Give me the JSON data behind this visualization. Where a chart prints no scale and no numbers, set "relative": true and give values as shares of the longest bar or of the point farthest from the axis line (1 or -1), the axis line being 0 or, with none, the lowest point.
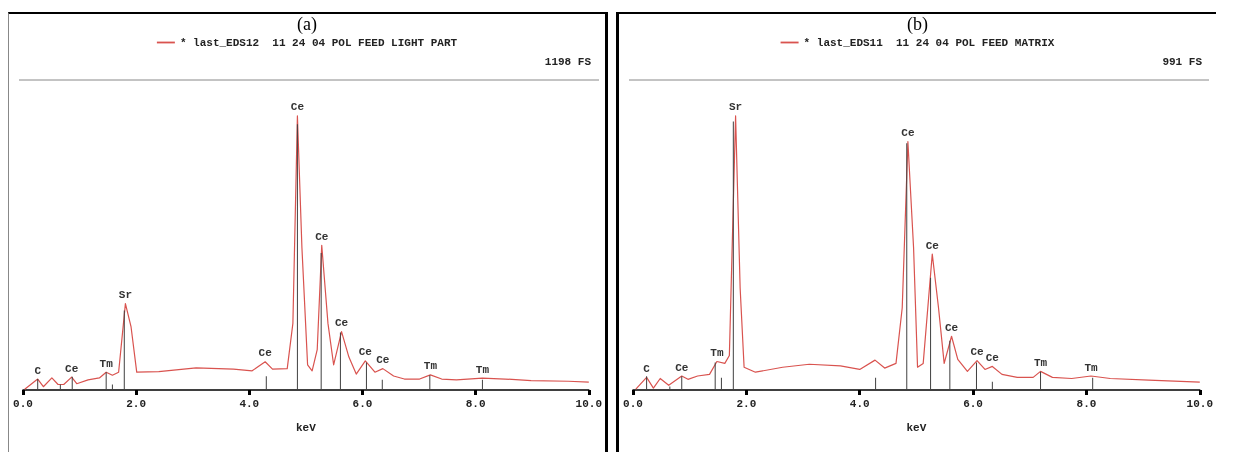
{
  "chart_data": [
    {
      "type": "line",
      "title": "(a)",
      "xlabel": "keV",
      "relative": true,
      "legend": "top",
      "marker": "none",
      "grid": false,
      "xlim": [
        0,
        10
      ],
      "xticks": [
        {
          "value": 0,
          "label": "0.0"
        },
        {
          "value": 2,
          "label": "2.0"
        },
        {
          "value": 4,
          "label": "4.0"
        },
        {
          "value": 6,
          "label": "6.0"
        },
        {
          "value": 8,
          "label": "8.0"
        },
        {
          "value": 10,
          "label": "10.0"
        }
      ],
      "series": [
        {
          "name": "* last_EDS12  11 24 04 POL FEED LIGHT PART",
          "color": "#d9534f",
          "x": [
            0.03,
            0.26,
            0.36,
            0.51,
            0.62,
            0.72,
            0.86,
            0.95,
            1.15,
            1.35,
            1.47,
            1.58,
            1.69,
            1.81,
            1.91,
            2.01,
            2.4,
            3.06,
            3.72,
            4.05,
            4.28,
            4.41,
            4.67,
            4.77,
            4.85,
            4.93,
            5.03,
            5.11,
            5.2,
            5.28,
            5.39,
            5.49,
            5.63,
            5.76,
            5.89,
            6.05,
            6.22,
            6.36,
            6.55,
            6.74,
            7.01,
            7.2,
            7.4,
            7.66,
            8.12,
            8.52,
            8.98,
            9.64,
            10.0
          ],
          "values": [
            0.003,
            0.04,
            0.012,
            0.044,
            0.02,
            0.02,
            0.047,
            0.023,
            0.037,
            0.044,
            0.065,
            0.054,
            0.065,
            0.315,
            0.23,
            0.065,
            0.067,
            0.081,
            0.076,
            0.07,
            0.103,
            0.076,
            0.078,
            0.243,
            1.0,
            0.518,
            0.092,
            0.07,
            0.147,
            0.528,
            0.243,
            0.092,
            0.213,
            0.12,
            0.058,
            0.106,
            0.065,
            0.078,
            0.051,
            0.04,
            0.04,
            0.055,
            0.04,
            0.037,
            0.043,
            0.04,
            0.034,
            0.032,
            0.029
          ]
        },
        {
          "type": "bar",
          "color": "#404040",
          "x": [
            0.26,
            0.66,
            0.87,
            1.47,
            1.58,
            1.79,
            4.3,
            4.85,
            5.27,
            5.61,
            6.07,
            6.35,
            7.19,
            8.12
          ],
          "values": [
            0.04,
            0.02,
            0.048,
            0.065,
            0.02,
            0.29,
            0.05,
            0.97,
            0.5,
            0.21,
            0.1,
            0.037,
            0.054,
            0.037
          ]
        }
      ],
      "annotations": [
        "1198 FS",
        {
          "text": "C",
          "x": 0.26,
          "y": 0.04
        },
        {
          "text": "Ce",
          "x": 0.86,
          "y": 0.047
        },
        {
          "text": "Tm",
          "x": 1.47,
          "y": 0.065
        },
        {
          "text": "Sr",
          "x": 1.81,
          "y": 0.315
        },
        {
          "text": "Ce",
          "x": 4.28,
          "y": 0.103
        },
        {
          "text": "Ce",
          "x": 4.85,
          "y": 1.0
        },
        {
          "text": "Ce",
          "x": 5.28,
          "y": 0.528
        },
        {
          "text": "Ce",
          "x": 5.63,
          "y": 0.213
        },
        {
          "text": "Ce",
          "x": 6.05,
          "y": 0.106
        },
        {
          "text": "Ce",
          "x": 6.36,
          "y": 0.078
        },
        {
          "text": "Tm",
          "x": 7.2,
          "y": 0.055
        },
        {
          "text": "Tm",
          "x": 8.12,
          "y": 0.043
        }
      ]
    },
    {
      "type": "line",
      "title": "(b)",
      "xlabel": "keV",
      "relative": true,
      "legend": "top",
      "marker": "none",
      "grid": false,
      "xlim": [
        0,
        10
      ],
      "xticks": [
        {
          "value": 0,
          "label": "0.0"
        },
        {
          "value": 2,
          "label": "2.0"
        },
        {
          "value": 4,
          "label": "4.0"
        },
        {
          "value": 6,
          "label": "6.0"
        },
        {
          "value": 8,
          "label": "8.0"
        },
        {
          "value": 10,
          "label": "10.0"
        }
      ],
      "series": [
        {
          "name": "* last_EDS11  11 24 04 POL FEED MATRIX",
          "color": "#d9534f",
          "x": [
            0.05,
            0.24,
            0.36,
            0.48,
            0.63,
            0.86,
            0.97,
            1.14,
            1.35,
            1.48,
            1.62,
            1.7,
            1.81,
            1.89,
            1.96,
            2.16,
            2.64,
            3.11,
            3.66,
            4.0,
            4.27,
            4.44,
            4.64,
            4.75,
            4.85,
            4.95,
            5.02,
            5.12,
            5.28,
            5.39,
            5.49,
            5.62,
            5.73,
            5.9,
            6.07,
            6.21,
            6.34,
            6.51,
            6.78,
            7.06,
            7.19,
            7.4,
            7.74,
            8.08,
            8.42,
            9.1,
            10.0
          ],
          "values": [
            0.003,
            0.046,
            0.007,
            0.042,
            0.017,
            0.051,
            0.039,
            0.051,
            0.057,
            0.104,
            0.097,
            0.126,
            1.0,
            0.373,
            0.083,
            0.065,
            0.083,
            0.094,
            0.088,
            0.075,
            0.109,
            0.08,
            0.097,
            0.3,
            0.906,
            0.52,
            0.083,
            0.097,
            0.496,
            0.3,
            0.097,
            0.196,
            0.112,
            0.068,
            0.107,
            0.075,
            0.086,
            0.057,
            0.046,
            0.046,
            0.068,
            0.046,
            0.042,
            0.051,
            0.042,
            0.036,
            0.029
          ]
        },
        {
          "type": "bar",
          "color": "#404040",
          "x": [
            0.24,
            0.65,
            0.86,
            1.45,
            1.56,
            1.77,
            4.28,
            4.83,
            5.25,
            5.59,
            6.06,
            6.34,
            7.19,
            8.11
          ],
          "values": [
            0.05,
            0.013,
            0.05,
            0.1,
            0.045,
            0.98,
            0.045,
            0.9,
            0.41,
            0.18,
            0.1,
            0.03,
            0.067,
            0.045
          ]
        }
      ],
      "annotations": [
        "991 FS",
        {
          "text": "C",
          "x": 0.24,
          "y": 0.046
        },
        {
          "text": "Ce",
          "x": 0.86,
          "y": 0.051
        },
        {
          "text": "Tm",
          "x": 1.48,
          "y": 0.104
        },
        {
          "text": "Sr",
          "x": 1.81,
          "y": 1.0
        },
        {
          "text": "Ce",
          "x": 4.85,
          "y": 0.906
        },
        {
          "text": "Ce",
          "x": 5.28,
          "y": 0.496
        },
        {
          "text": "Ce",
          "x": 5.62,
          "y": 0.196
        },
        {
          "text": "Ce",
          "x": 6.07,
          "y": 0.107
        },
        {
          "text": "Ce",
          "x": 6.34,
          "y": 0.086
        },
        {
          "text": "Tm",
          "x": 7.19,
          "y": 0.068
        },
        {
          "text": "Tm",
          "x": 8.08,
          "y": 0.051
        }
      ]
    }
  ]
}
